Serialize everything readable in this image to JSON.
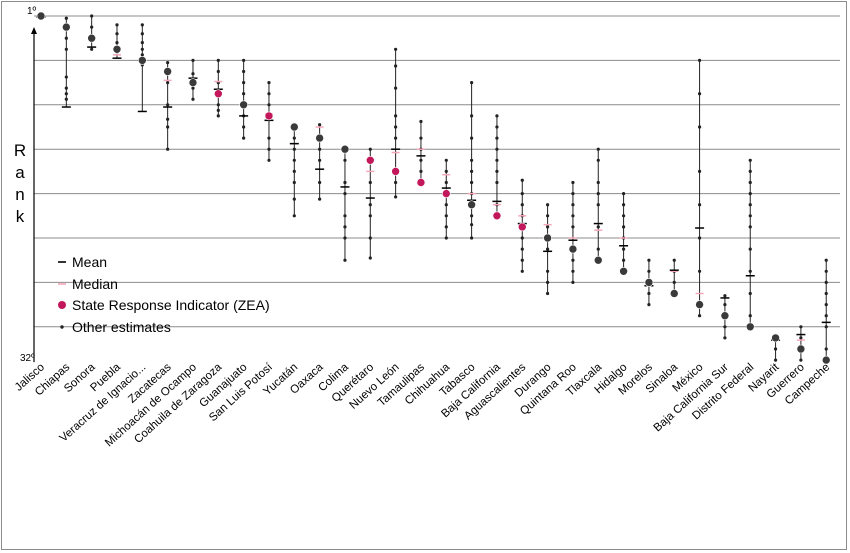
{
  "chart_data": {
    "type": "scatter",
    "ylabel": "R a n k",
    "y_top_label": "1º",
    "y_bottom_label": "32º",
    "ylim": [
      1,
      32
    ],
    "y_reversed": true,
    "categories": [
      "Jalisco",
      "Chiapas",
      "Sonora",
      "Puebla",
      "Veracruz de Ignacio...",
      "Zacatecas",
      "Michoacán de Ocampo",
      "Coahuila de Zaragoza",
      "Guanajuato",
      "San Luis Potosí",
      "Yucatán",
      "Oaxaca",
      "Colima",
      "Querétaro",
      "Nuevo León",
      "Tamaulipas",
      "Chihuahua",
      "Tabasco",
      "Baja California",
      "Aguascalientes",
      "Durango",
      "Quintana Roo",
      "Tlaxcala",
      "Hidalgo",
      "Morelos",
      "Sinaloa",
      "México",
      "Baja California Sur",
      "Distrito Federal",
      "Nayarit",
      "Guerrero",
      "Campeche"
    ],
    "series": [
      {
        "name": "Mean",
        "values": [
          1.1,
          9.2,
          3.8,
          4.8,
          9.6,
          9.2,
          6.6,
          7.6,
          10.0,
          10.4,
          12.5,
          14.8,
          16.4,
          17.4,
          13.0,
          13.6,
          16.5,
          17.6,
          17.7,
          19.7,
          22.2,
          21.2,
          19.7,
          21.7,
          25.3,
          23.9,
          20.1,
          26.4,
          24.4,
          30.2,
          29.7,
          28.6
        ]
      },
      {
        "name": "Median",
        "values": [
          1.0,
          2.0,
          3.0,
          4.5,
          5.0,
          6.8,
          7.0,
          6.9,
          9.0,
          9.8,
          12.5,
          11.0,
          13.0,
          15.0,
          13.3,
          13.0,
          15.3,
          17.0,
          18.0,
          19.0,
          19.8,
          21.0,
          20.3,
          21.0,
          25.0,
          24.0,
          26.0,
          28.0,
          29.0,
          30.0,
          30.2,
          32.0
        ]
      },
      {
        "name": "State Response Indicator (ZEA)",
        "values": [
          1,
          2,
          3,
          4,
          5,
          6,
          7,
          8,
          9,
          10,
          11,
          12,
          13,
          14,
          15,
          16,
          17,
          18,
          19,
          20,
          21,
          22,
          23,
          24,
          25,
          26,
          27,
          28,
          29,
          30,
          31,
          32
        ]
      },
      {
        "name": "Other estimates",
        "points": [
          [
            [
              1,
              1.2
            ],
            [
              1.6,
              2
            ]
          ],
          [
            [
              1.2,
              2,
              3,
              4,
              6.5,
              7.5,
              8,
              8.5
            ]
          ],
          [
            [
              1,
              2,
              3,
              4
            ]
          ],
          [
            [
              1.8,
              2.6,
              3.4
            ]
          ],
          [
            [
              1.8,
              2.6,
              3.4,
              4,
              4.5,
              5.4
            ]
          ],
          [
            [
              5.2,
              7,
              9,
              10.3,
              11,
              13
            ]
          ],
          [
            [
              5,
              6.2,
              7.5,
              8.5
            ]
          ],
          [
            [
              5,
              6,
              7,
              8,
              9,
              9.5,
              10
            ]
          ],
          [
            [
              5,
              6,
              7,
              8,
              9,
              10,
              11,
              12
            ]
          ],
          [
            [
              7,
              8,
              9,
              10,
              12,
              13,
              14
            ]
          ],
          [
            [
              11,
              12,
              13,
              14,
              15,
              16,
              17.5,
              19
            ]
          ],
          [
            [
              10.8,
              12,
              13,
              14,
              16,
              17.5
            ]
          ],
          [
            [
              13,
              14,
              16,
              17,
              19,
              20,
              21,
              23
            ]
          ],
          [
            [
              13,
              14,
              16,
              18,
              19,
              21,
              22.8
            ]
          ],
          [
            [
              4,
              5.5,
              7.5,
              10,
              11,
              12,
              16,
              17.3
            ]
          ],
          [
            [
              10.5,
              12,
              13,
              14,
              15,
              16
            ]
          ],
          [
            [
              14,
              15,
              16,
              17,
              18,
              19,
              20,
              21
            ]
          ],
          [
            [
              7,
              10,
              12,
              14,
              15,
              16,
              17,
              19,
              19.8,
              21
            ]
          ],
          [
            [
              10,
              11,
              12,
              13,
              14,
              15,
              16,
              18,
              19
            ]
          ],
          [
            [
              15.8,
              17,
              18,
              19,
              21,
              22,
              23,
              24
            ]
          ],
          [
            [
              18,
              19,
              20,
              22,
              24,
              25,
              26
            ]
          ],
          [
            [
              16,
              17,
              18,
              19,
              20,
              23,
              24,
              25
            ]
          ],
          [
            [
              13,
              14,
              16,
              17,
              18,
              20,
              22,
              23
            ]
          ],
          [
            [
              17,
              18,
              19,
              20,
              21,
              22,
              23
            ]
          ],
          [
            [
              23,
              24,
              25,
              26,
              27
            ]
          ],
          [
            [
              23,
              24,
              25,
              26
            ]
          ],
          [
            [
              5,
              8,
              11,
              15,
              18,
              21,
              24,
              27,
              28
            ]
          ],
          [
            [
              26.2,
              27,
              28.2,
              29,
              30
            ]
          ],
          [
            [
              14,
              15,
              16,
              17,
              18,
              19,
              20,
              22,
              24,
              26,
              28
            ]
          ],
          [
            [
              31,
              32
            ]
          ],
          [
            [
              29,
              30,
              31,
              32
            ]
          ],
          [
            [
              23,
              24,
              25,
              26,
              27,
              28,
              29,
              31
            ]
          ]
        ]
      }
    ],
    "legend": [
      {
        "label": "Mean",
        "symbol": "dash-black"
      },
      {
        "label": "Median",
        "symbol": "dash-pink"
      },
      {
        "label": "State Response Indicator (ZEA)",
        "symbol": "dot-red"
      },
      {
        "label": "Other estimates",
        "symbol": "dot-small"
      }
    ],
    "legend_position": "bottom-left",
    "grid": true,
    "colors": {
      "mean": "#000000",
      "median": "#f4a7b9",
      "zea": "#c2185b",
      "zea_dark": "#3a3a3a",
      "other": "#222222",
      "grid": "#8c8c8c"
    }
  }
}
